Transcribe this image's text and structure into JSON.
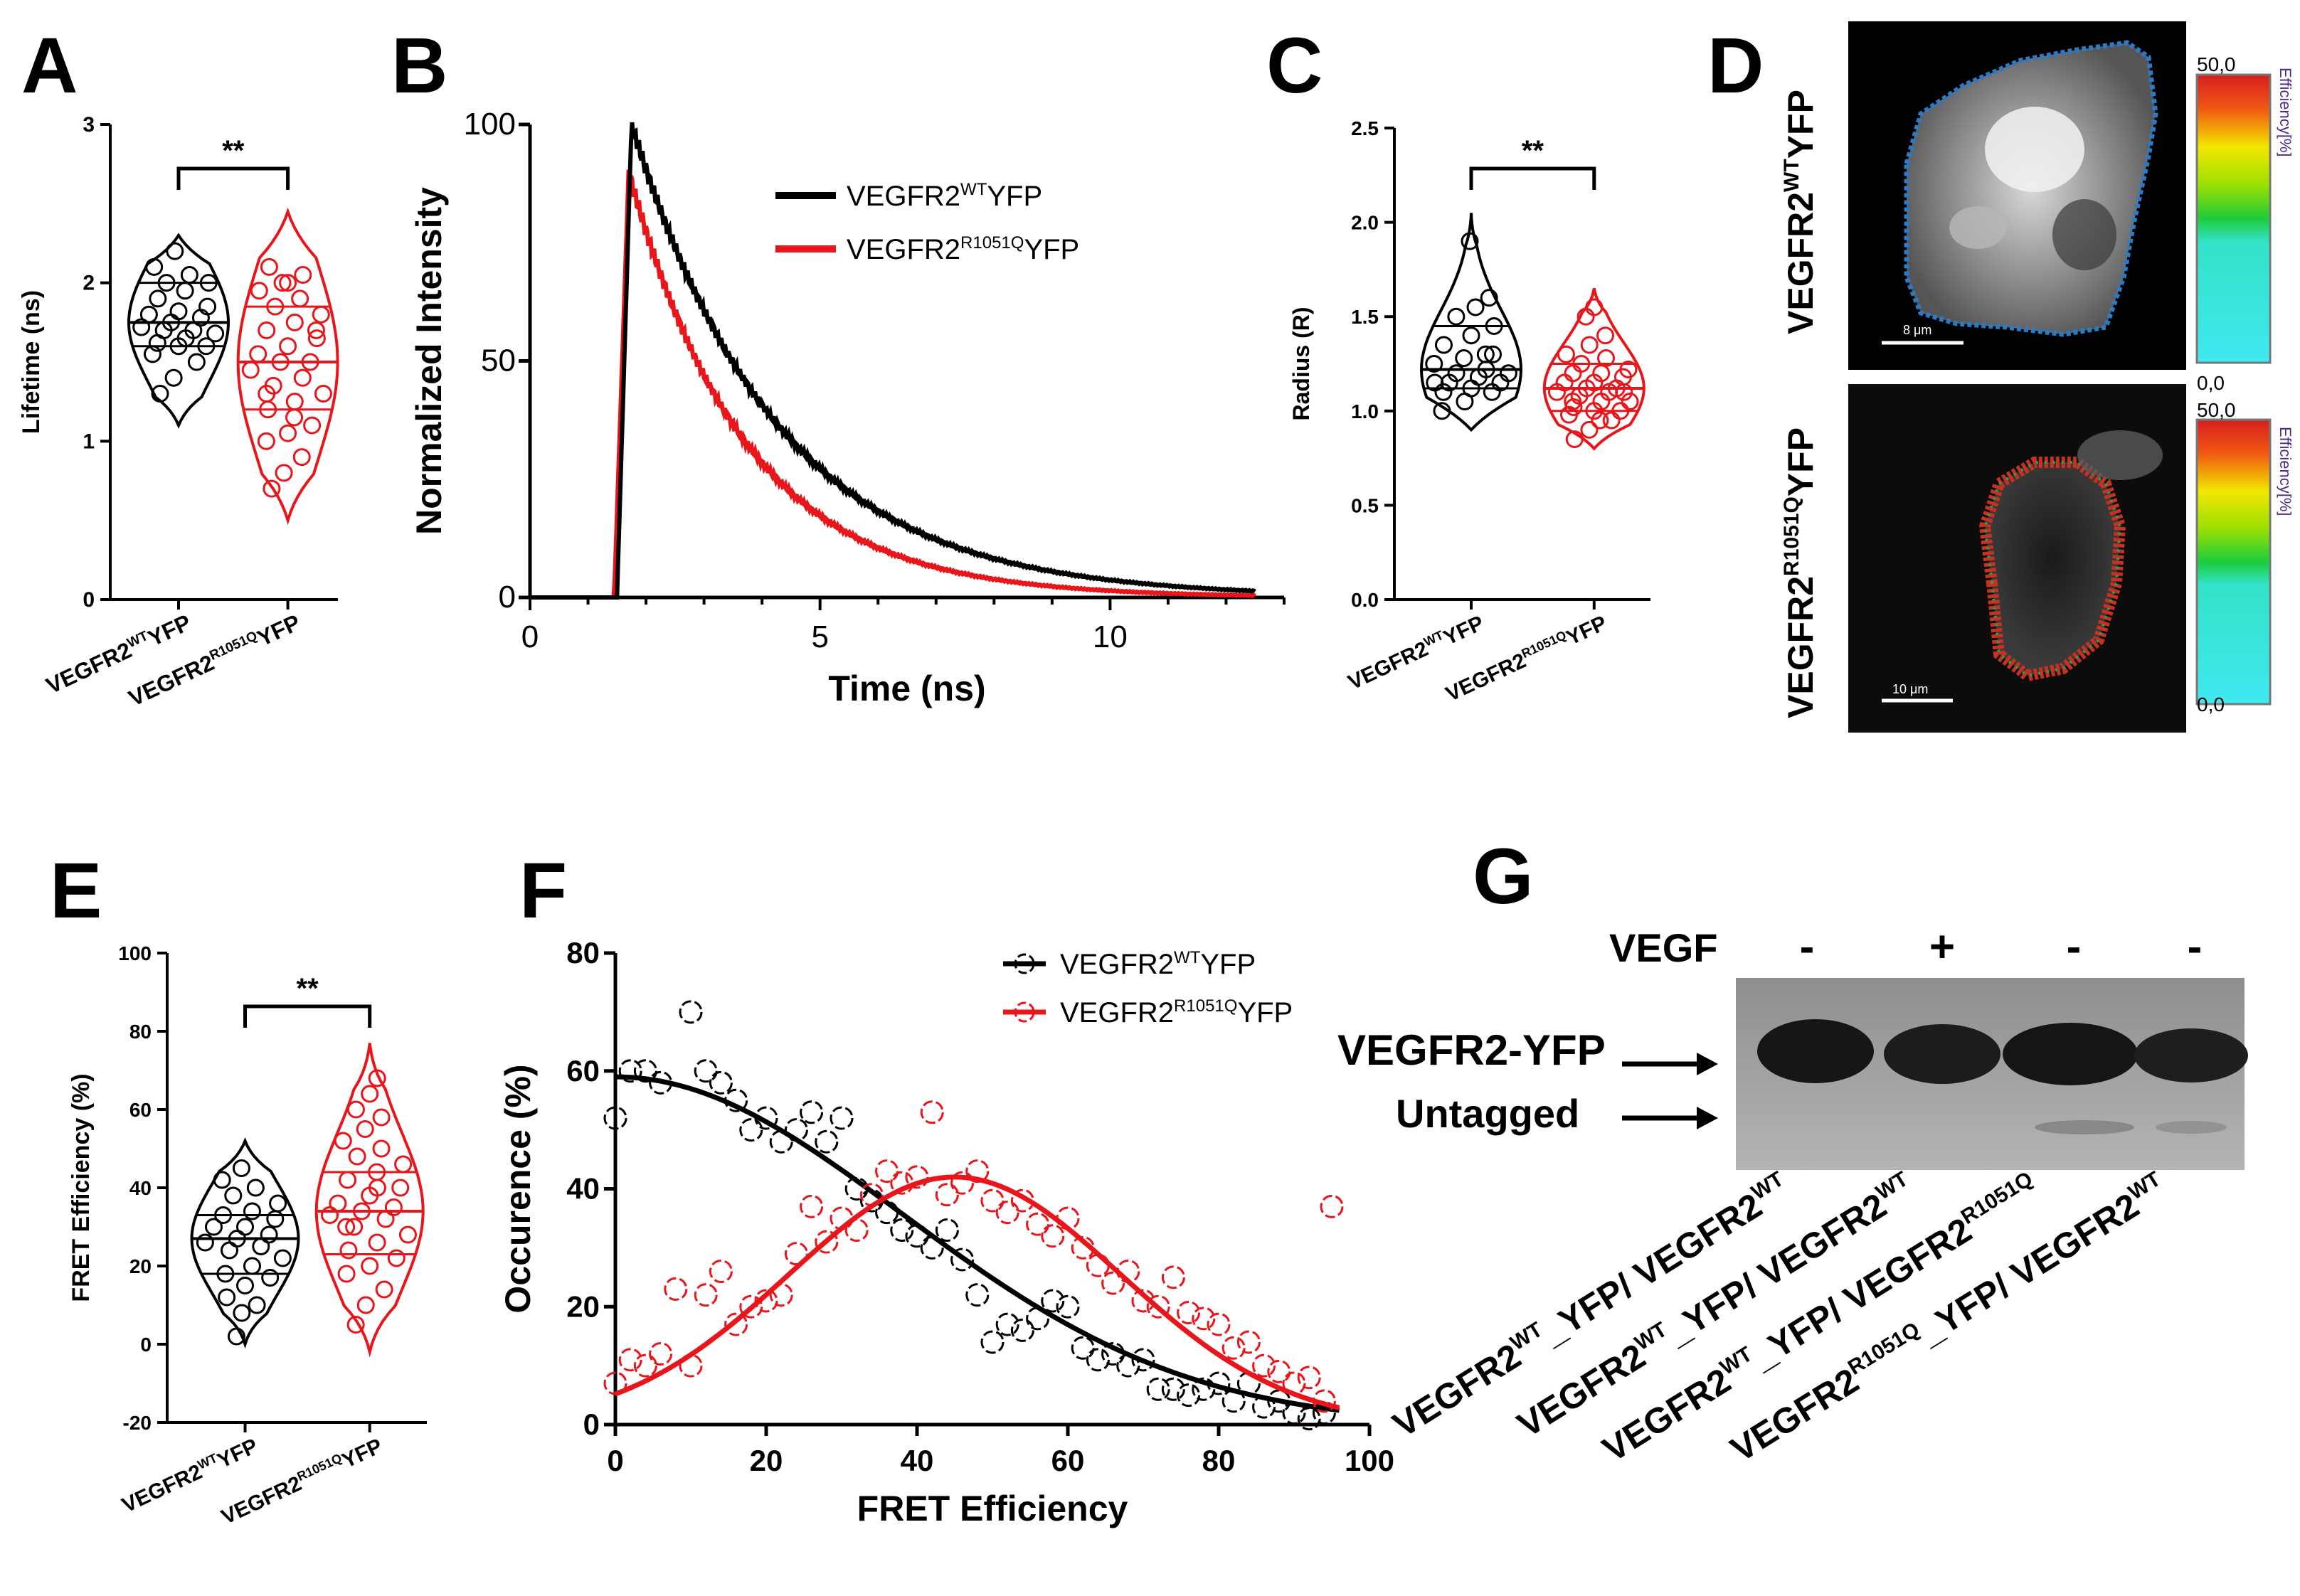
{
  "colors": {
    "wt": "#000000",
    "mut": "#e8161b",
    "grid_axis": "#000000"
  },
  "chart_data": [
    {
      "panel": "A",
      "type": "violin",
      "ylabel": "Lifetime (ns)",
      "ylim": [
        0,
        3
      ],
      "yticks": [
        0,
        1,
        2,
        3
      ],
      "significance": "**",
      "categories": [
        {
          "sup_base": "VEGFR2",
          "sup": "WT",
          "suffix": "YFP"
        },
        {
          "sup_base": "VEGFR2",
          "sup": "R1051Q",
          "suffix": "YFP"
        }
      ],
      "groups": [
        {
          "name": "VEGFR2WTYFP",
          "color_key": "wt",
          "min": 1.1,
          "max": 2.3,
          "q1": 1.6,
          "median": 1.75,
          "q3": 2.0,
          "points": [
            1.3,
            1.4,
            1.5,
            1.55,
            1.6,
            1.6,
            1.62,
            1.65,
            1.68,
            1.7,
            1.7,
            1.72,
            1.75,
            1.78,
            1.8,
            1.82,
            1.85,
            1.9,
            1.95,
            2.0,
            2.0,
            2.05,
            2.1,
            2.2
          ]
        },
        {
          "name": "VEGFR2R1051QYFP",
          "color_key": "mut",
          "min": 0.5,
          "max": 2.45,
          "q1": 1.2,
          "median": 1.5,
          "q3": 1.85,
          "points": [
            0.7,
            0.8,
            0.9,
            1.0,
            1.05,
            1.1,
            1.2,
            1.25,
            1.3,
            1.35,
            1.4,
            1.45,
            1.5,
            1.5,
            1.55,
            1.6,
            1.65,
            1.7,
            1.75,
            1.8,
            1.85,
            1.9,
            1.95,
            2.0,
            2.05,
            2.1,
            2.0,
            1.7,
            1.3,
            1.15
          ]
        }
      ]
    },
    {
      "panel": "B",
      "type": "line",
      "xlabel": "Time (ns)",
      "ylabel": "Normalized Intensity",
      "xlim": [
        0,
        13
      ],
      "ylim": [
        0,
        100
      ],
      "xticks": [
        0,
        5,
        10
      ],
      "yticks": [
        0,
        50,
        100
      ],
      "series": [
        {
          "name": "VEGFR2WTYFP",
          "label_base": "VEGFR2",
          "label_sup": "WT",
          "label_suffix": "YFP",
          "color_key": "wt",
          "onset": 1.5,
          "peak_t": 1.75,
          "peak": 100,
          "tau": 2.5
        },
        {
          "name": "VEGFR2R1051QYFP",
          "label_base": "VEGFR2",
          "label_sup": "R1051Q",
          "label_suffix": "YFP",
          "color_key": "mut",
          "onset": 1.45,
          "peak_t": 1.7,
          "peak": 90,
          "tau": 2.0
        }
      ]
    },
    {
      "panel": "C",
      "type": "violin",
      "ylabel": "Radius (R)",
      "ylim": [
        0,
        2.5
      ],
      "yticks": [
        "0.0",
        "0.5",
        "1.0",
        "1.5",
        "2.0",
        "2.5"
      ],
      "significance": "**",
      "categories": [
        {
          "sup_base": "VEGFR2",
          "sup": "WT",
          "suffix": "YFP"
        },
        {
          "sup_base": "VEGFR2",
          "sup": "R1051Q",
          "suffix": "YFP"
        }
      ],
      "groups": [
        {
          "name": "VEGFR2WTYFP",
          "color_key": "wt",
          "min": 0.9,
          "max": 2.05,
          "q1": 1.12,
          "median": 1.22,
          "q3": 1.45,
          "points": [
            1.0,
            1.05,
            1.1,
            1.1,
            1.12,
            1.15,
            1.15,
            1.18,
            1.2,
            1.2,
            1.22,
            1.25,
            1.28,
            1.3,
            1.35,
            1.4,
            1.45,
            1.5,
            1.55,
            1.6,
            1.9,
            1.3,
            1.15
          ]
        },
        {
          "name": "VEGFR2R1051QYFP",
          "color_key": "mut",
          "min": 0.8,
          "max": 1.65,
          "q1": 1.0,
          "median": 1.12,
          "q3": 1.25,
          "points": [
            0.85,
            0.9,
            0.95,
            0.98,
            1.0,
            1.0,
            1.02,
            1.05,
            1.05,
            1.08,
            1.1,
            1.1,
            1.12,
            1.12,
            1.15,
            1.15,
            1.18,
            1.2,
            1.2,
            1.22,
            1.25,
            1.28,
            1.3,
            1.35,
            1.4,
            1.5,
            1.55,
            1.1,
            1.05,
            0.95
          ]
        }
      ]
    },
    {
      "panel": "E",
      "type": "violin",
      "ylabel": "FRET Efficiency (%)",
      "ylim": [
        -20,
        100
      ],
      "yticks": [
        -20,
        0,
        20,
        40,
        60,
        80,
        100
      ],
      "significance": "**",
      "categories": [
        {
          "sup_base": "VEGFR2",
          "sup": "WT",
          "suffix": "YFP"
        },
        {
          "sup_base": "VEGFR2",
          "sup": "R1051Q",
          "suffix": "YFP"
        }
      ],
      "groups": [
        {
          "name": "VEGFR2WTYFP",
          "color_key": "wt",
          "min": 0,
          "max": 52,
          "q1": 18,
          "median": 27,
          "q3": 33,
          "points": [
            2,
            8,
            10,
            12,
            15,
            17,
            18,
            20,
            22,
            24,
            25,
            26,
            27,
            28,
            30,
            30,
            32,
            33,
            34,
            36,
            38,
            40,
            42,
            45
          ]
        },
        {
          "name": "VEGFR2R1051QYFP",
          "color_key": "mut",
          "min": -2,
          "max": 77,
          "q1": 23,
          "median": 34,
          "q3": 44,
          "points": [
            5,
            10,
            14,
            18,
            20,
            22,
            24,
            26,
            28,
            30,
            32,
            33,
            34,
            35,
            36,
            38,
            40,
            42,
            44,
            46,
            48,
            50,
            52,
            55,
            58,
            60,
            64,
            68,
            30,
            40
          ]
        }
      ]
    },
    {
      "panel": "F",
      "type": "scatter",
      "xlabel": "FRET Efficiency",
      "ylabel": "Occurence (%)",
      "xlim": [
        0,
        100
      ],
      "ylim": [
        0,
        80
      ],
      "xticks": [
        0,
        20,
        40,
        60,
        80,
        100
      ],
      "yticks": [
        0,
        20,
        40,
        60,
        80
      ],
      "series": [
        {
          "name": "VEGFR2WTYFP",
          "label_base": "VEGFR2",
          "label_sup": "WT",
          "label_suffix": "YFP",
          "color_key": "wt",
          "fit": {
            "amp": 59,
            "mu": 0,
            "sigma": 38
          },
          "x": [
            0,
            2,
            4,
            6,
            10,
            12,
            14,
            16,
            18,
            20,
            22,
            24,
            26,
            28,
            30,
            32,
            34,
            36,
            38,
            40,
            42,
            44,
            46,
            48,
            50,
            52,
            54,
            56,
            58,
            60,
            62,
            64,
            66,
            68,
            70,
            72,
            74,
            76,
            78,
            80,
            82,
            84,
            86,
            88,
            90,
            92,
            94
          ],
          "y": [
            52,
            60,
            60,
            58,
            70,
            60,
            58,
            55,
            50,
            52,
            48,
            50,
            53,
            48,
            52,
            40,
            38,
            36,
            33,
            32,
            30,
            33,
            28,
            22,
            14,
            17,
            16,
            18,
            21,
            20,
            13,
            11,
            12,
            10,
            11,
            6,
            6,
            5,
            6,
            7,
            4,
            7,
            3,
            4,
            2,
            1,
            2
          ]
        },
        {
          "name": "VEGFR2R1051QYFP",
          "label_base": "VEGFR2",
          "label_sup": "R1051Q",
          "label_suffix": "YFP",
          "color_key": "mut",
          "fit": {
            "amp": 42,
            "mu": 45,
            "sigma": 22
          },
          "x": [
            0,
            2,
            4,
            6,
            8,
            10,
            12,
            14,
            16,
            18,
            20,
            22,
            24,
            26,
            28,
            30,
            32,
            34,
            36,
            38,
            40,
            42,
            44,
            46,
            48,
            50,
            52,
            54,
            56,
            58,
            60,
            62,
            64,
            66,
            68,
            70,
            72,
            74,
            76,
            78,
            80,
            82,
            84,
            86,
            88,
            90,
            92,
            94,
            95
          ],
          "y": [
            7,
            11,
            10,
            12,
            23,
            10,
            22,
            26,
            17,
            20,
            21,
            22,
            29,
            37,
            31,
            35,
            33,
            39,
            43,
            41,
            42,
            53,
            39,
            41,
            43,
            38,
            36,
            38,
            34,
            32,
            35,
            30,
            27,
            24,
            26,
            21,
            20,
            25,
            19,
            18,
            17,
            13,
            14,
            10,
            9,
            7,
            8,
            4,
            37
          ]
        }
      ]
    }
  ],
  "panel_labels": {
    "A": "A",
    "B": "B",
    "C": "C",
    "D": "D",
    "E": "E",
    "F": "F",
    "G": "G"
  },
  "panel_d": {
    "rows": [
      {
        "label_base": "VEGFR2",
        "label_sup": "WT",
        "label_suffix": "YFP",
        "scale_bar": "8 μm",
        "cbar_max": "50,0",
        "cbar_min": "0,0",
        "cbar_title": "Efficiency[%]"
      },
      {
        "label_base": "VEGFR2",
        "label_sup": "R1051Q",
        "label_suffix": "YFP",
        "scale_bar": "10 μm",
        "cbar_max": "50,0",
        "cbar_min": "0,0",
        "cbar_title": "Efficiency[%]"
      }
    ]
  },
  "panel_g": {
    "treatment_label": "VEGF",
    "treatments": [
      "-",
      "+",
      "-",
      "-"
    ],
    "band_labels": [
      "VEGFR2-YFP",
      "Untagged"
    ],
    "lanes": [
      {
        "base1": "VEGFR2",
        "sup1": "WT",
        "mid": "_YFP/ VEGFR2",
        "sup2": "WT"
      },
      {
        "base1": "VEGFR2",
        "sup1": "WT",
        "mid": "_YFP/ VEGFR2",
        "sup2": "WT"
      },
      {
        "base1": "VEGFR2",
        "sup1": "WT",
        "mid": "_YFP/ VEGFR2",
        "sup2": "R1051Q"
      },
      {
        "base1": "VEGFR2",
        "sup1": "R1051Q",
        "mid": "_YFP/ VEGFR2",
        "sup2": "WT"
      }
    ]
  }
}
